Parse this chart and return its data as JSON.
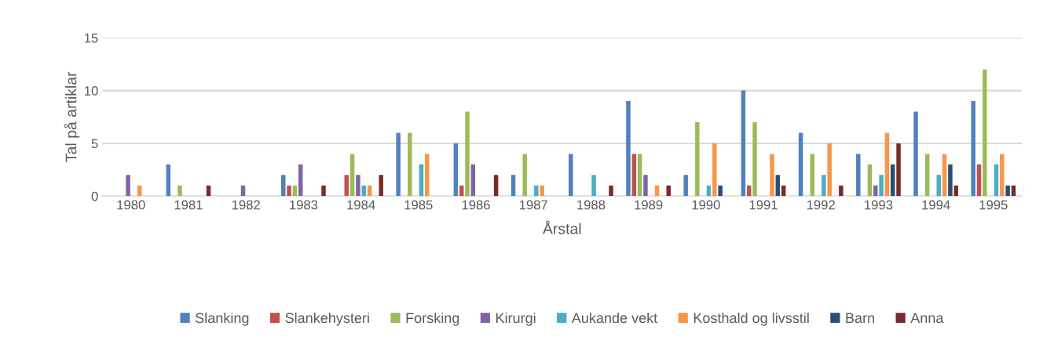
{
  "chart_data": {
    "type": "bar",
    "xlabel": "Årstal",
    "ylabel": "Tal på artiklar",
    "categories": [
      "1980",
      "1981",
      "1982",
      "1983",
      "1984",
      "1985",
      "1986",
      "1987",
      "1988",
      "1989",
      "1990",
      "1991",
      "1992",
      "1993",
      "1994",
      "1995"
    ],
    "series": [
      {
        "name": "Slanking",
        "color": "#4f81bd",
        "values": [
          null,
          3,
          null,
          2,
          null,
          6,
          5,
          2,
          4,
          9,
          2,
          10,
          6,
          4,
          8,
          9
        ]
      },
      {
        "name": "Slankehysteri",
        "color": "#c0504d",
        "values": [
          null,
          null,
          null,
          1,
          2,
          null,
          1,
          null,
          null,
          4,
          null,
          1,
          null,
          null,
          null,
          3
        ]
      },
      {
        "name": "Forsking",
        "color": "#9bbb59",
        "values": [
          null,
          1,
          null,
          1,
          4,
          6,
          8,
          4,
          null,
          4,
          7,
          7,
          4,
          3,
          4,
          12
        ]
      },
      {
        "name": "Kirurgi",
        "color": "#8064a2",
        "values": [
          2,
          null,
          1,
          3,
          2,
          null,
          3,
          null,
          null,
          2,
          null,
          null,
          null,
          1,
          null,
          null
        ]
      },
      {
        "name": "Aukande vekt",
        "color": "#4bacc6",
        "values": [
          null,
          null,
          null,
          null,
          1,
          3,
          null,
          1,
          2,
          null,
          1,
          null,
          2,
          2,
          2,
          3
        ]
      },
      {
        "name": "Kosthald og livsstil",
        "color": "#f79646",
        "values": [
          1,
          null,
          null,
          null,
          1,
          4,
          null,
          1,
          null,
          1,
          5,
          4,
          5,
          6,
          4,
          4
        ]
      },
      {
        "name": "Barn",
        "color": "#2c4d75",
        "values": [
          null,
          null,
          null,
          null,
          null,
          null,
          null,
          null,
          null,
          null,
          1,
          2,
          null,
          3,
          3,
          1
        ]
      },
      {
        "name": "Anna",
        "color": "#772c2a",
        "values": [
          null,
          1,
          null,
          1,
          2,
          null,
          2,
          null,
          1,
          1,
          null,
          1,
          1,
          5,
          1,
          1
        ]
      }
    ],
    "ylim": [
      0,
      15
    ],
    "yticks": [
      0,
      5,
      10,
      15
    ],
    "grid": "y",
    "legend": "bottom"
  }
}
